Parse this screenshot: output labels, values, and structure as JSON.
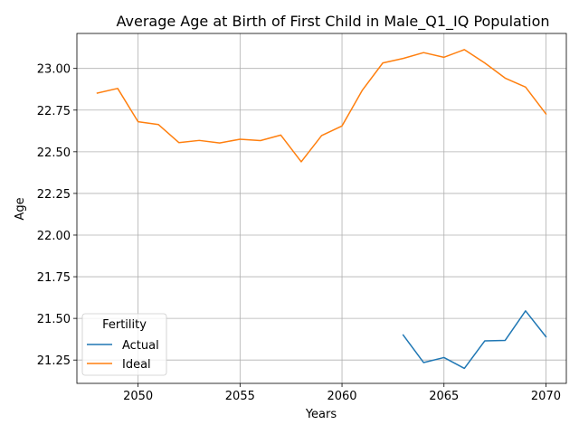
{
  "chart_data": {
    "type": "line",
    "title": "Average Age at Birth of First Child in Male_Q1_IQ Population",
    "xlabel": "Years",
    "ylabel": "Age",
    "xlim": [
      2047,
      2071
    ],
    "ylim": [
      21.11,
      23.21
    ],
    "xticks": [
      2050,
      2055,
      2060,
      2065,
      2070
    ],
    "yticks": [
      21.25,
      21.5,
      21.75,
      22.0,
      22.25,
      22.5,
      22.75,
      23.0
    ],
    "xtick_labels": [
      "2050",
      "2055",
      "2060",
      "2065",
      "2070"
    ],
    "ytick_labels": [
      "21.25",
      "21.50",
      "21.75",
      "22.00",
      "22.25",
      "22.50",
      "22.75",
      "23.00"
    ],
    "grid": true,
    "legend": {
      "title": "Fertility",
      "placement": "lower-left",
      "entries": [
        "Actual",
        "Ideal"
      ]
    },
    "series": [
      {
        "name": "Actual",
        "color": "#1f77b4",
        "x": [
          2063,
          2064,
          2065,
          2066,
          2067,
          2068,
          2069,
          2070
        ],
        "values": [
          21.4,
          21.235,
          21.265,
          21.2,
          21.365,
          21.368,
          21.545,
          21.39
        ]
      },
      {
        "name": "Ideal",
        "color": "#ff7f0e",
        "x": [
          2048,
          2049,
          2050,
          2051,
          2052,
          2053,
          2054,
          2055,
          2056,
          2057,
          2058,
          2059,
          2060,
          2061,
          2062,
          2063,
          2064,
          2065,
          2066,
          2067,
          2068,
          2069,
          2070
        ],
        "values": [
          22.852,
          22.88,
          22.68,
          22.663,
          22.555,
          22.568,
          22.553,
          22.575,
          22.567,
          22.6,
          22.44,
          22.597,
          22.655,
          22.87,
          23.033,
          23.06,
          23.095,
          23.067,
          23.113,
          23.033,
          22.942,
          22.888,
          22.727
        ]
      }
    ]
  }
}
